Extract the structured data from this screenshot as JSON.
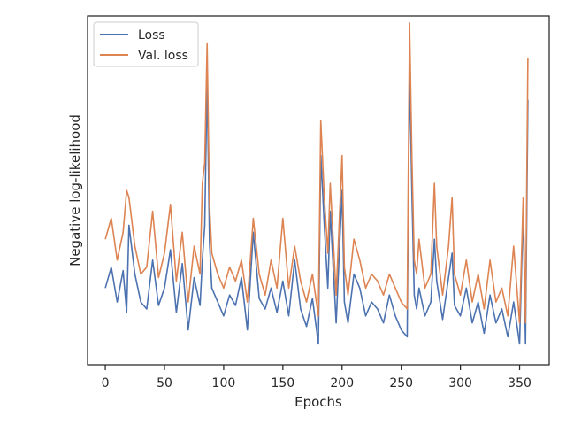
{
  "chart_data": {
    "type": "line",
    "xlabel": "Epochs",
    "ylabel": "Negative log-likelihood",
    "xlim": [
      -15,
      375
    ],
    "xticks": [
      0,
      50,
      100,
      150,
      200,
      250,
      300,
      350
    ],
    "ylim": [
      0,
      100
    ],
    "y_tick_labels_shown": false,
    "grid": false,
    "legend_position": "upper left",
    "series": [
      {
        "name": "Loss",
        "color": "#4c72b0",
        "x": [
          0,
          5,
          10,
          15,
          18,
          20,
          25,
          30,
          35,
          40,
          45,
          50,
          55,
          60,
          65,
          70,
          75,
          80,
          82,
          84,
          86,
          88,
          90,
          95,
          100,
          105,
          110,
          115,
          120,
          125,
          130,
          135,
          140,
          145,
          150,
          155,
          160,
          165,
          170,
          175,
          180,
          182,
          185,
          188,
          190,
          195,
          200,
          202,
          205,
          210,
          215,
          220,
          225,
          230,
          235,
          240,
          245,
          250,
          255,
          257,
          259,
          261,
          263,
          265,
          270,
          275,
          278,
          280,
          285,
          290,
          293,
          295,
          300,
          305,
          310,
          315,
          320,
          325,
          330,
          335,
          340,
          345,
          350,
          353,
          355,
          357
        ],
        "y": [
          22,
          28,
          18,
          27,
          15,
          40,
          26,
          18,
          16,
          30,
          17,
          22,
          33,
          15,
          29,
          10,
          25,
          17,
          30,
          40,
          82,
          35,
          22,
          18,
          14,
          20,
          17,
          25,
          10,
          38,
          19,
          16,
          22,
          15,
          24,
          14,
          30,
          16,
          11,
          19,
          6,
          60,
          40,
          22,
          44,
          12,
          50,
          18,
          12,
          26,
          22,
          14,
          18,
          16,
          12,
          20,
          14,
          10,
          8,
          86,
          50,
          20,
          16,
          22,
          14,
          18,
          36,
          24,
          13,
          25,
          32,
          17,
          14,
          22,
          12,
          18,
          9,
          20,
          12,
          16,
          8,
          18,
          6,
          45,
          6,
          76
        ]
      },
      {
        "name": "Val. loss",
        "color": "#dd8452",
        "x": [
          0,
          5,
          10,
          15,
          18,
          20,
          25,
          30,
          35,
          40,
          45,
          50,
          55,
          60,
          65,
          70,
          75,
          80,
          82,
          84,
          86,
          88,
          90,
          95,
          100,
          105,
          110,
          115,
          120,
          125,
          130,
          135,
          140,
          145,
          150,
          155,
          160,
          165,
          170,
          175,
          180,
          182,
          185,
          188,
          190,
          195,
          200,
          202,
          205,
          210,
          215,
          220,
          225,
          230,
          235,
          240,
          245,
          250,
          255,
          257,
          259,
          261,
          263,
          265,
          270,
          275,
          278,
          280,
          285,
          290,
          293,
          295,
          300,
          305,
          310,
          315,
          320,
          325,
          330,
          335,
          340,
          345,
          350,
          353,
          355,
          357
        ],
        "y": [
          36,
          42,
          30,
          38,
          50,
          48,
          34,
          26,
          28,
          44,
          25,
          32,
          46,
          24,
          38,
          18,
          34,
          26,
          52,
          58,
          92,
          46,
          32,
          26,
          22,
          28,
          24,
          30,
          18,
          42,
          26,
          20,
          30,
          22,
          42,
          22,
          34,
          24,
          18,
          26,
          14,
          70,
          48,
          32,
          52,
          20,
          60,
          28,
          20,
          36,
          30,
          22,
          26,
          24,
          20,
          26,
          22,
          18,
          16,
          98,
          60,
          30,
          26,
          36,
          22,
          26,
          52,
          34,
          20,
          34,
          48,
          26,
          20,
          30,
          18,
          26,
          16,
          30,
          18,
          22,
          14,
          34,
          12,
          48,
          12,
          88
        ]
      }
    ]
  }
}
